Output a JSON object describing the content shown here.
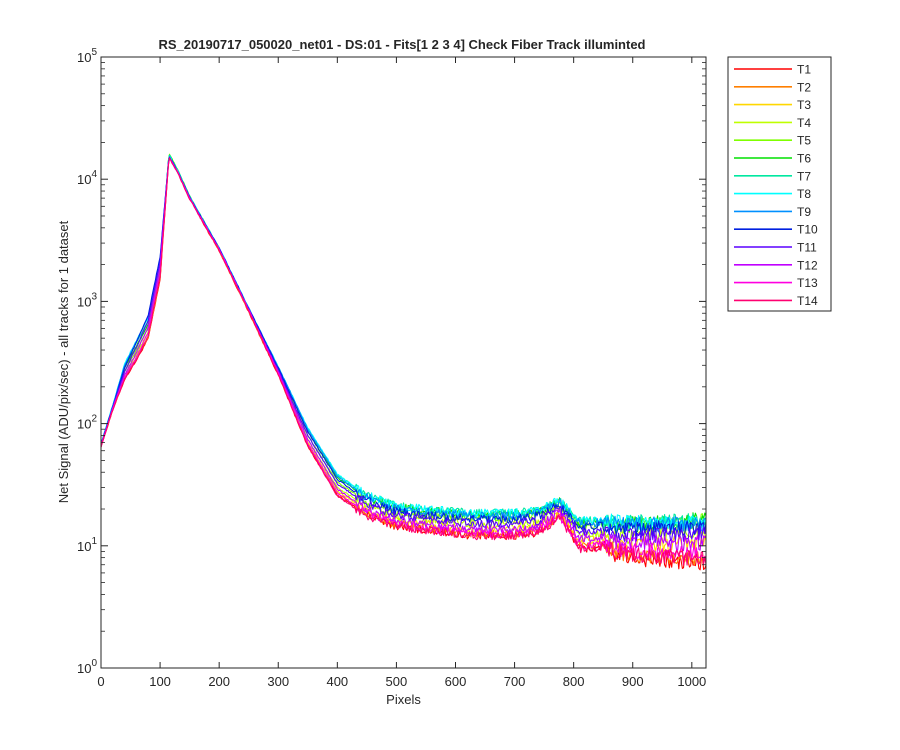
{
  "chart_data": {
    "type": "line",
    "title": "RS_20190717_050020_net01 - DS:01 - Fits[1  2  3  4]   Check Fiber     Track illuminted",
    "xlabel": "Pixels",
    "ylabel": "Net Signal (ADU/pix/sec) - all tracks for 1 dataset",
    "xlim": [
      0,
      1024
    ],
    "ylim": [
      1,
      100000
    ],
    "yscale": "log",
    "xticks": [
      "0",
      "100",
      "200",
      "300",
      "400",
      "500",
      "600",
      "700",
      "800",
      "900",
      "1000"
    ],
    "xtick_values": [
      0,
      100,
      200,
      300,
      400,
      500,
      600,
      700,
      800,
      900,
      1000
    ],
    "ytick_exponents": [
      "0",
      "1",
      "2",
      "3",
      "4",
      "5"
    ],
    "ytick_base": "10",
    "legend_position": "outside-right-top",
    "shared_profile": {
      "x": [
        0,
        20,
        40,
        60,
        80,
        100,
        115,
        130,
        150,
        175,
        200,
        250,
        300,
        350,
        400,
        450,
        500,
        550,
        600,
        650,
        700,
        740,
        760,
        775,
        790,
        810,
        830,
        850,
        870,
        900,
        950,
        1000,
        1024
      ]
    },
    "series": [
      {
        "name": "T1",
        "color": "#ff0000",
        "values": [
          65,
          130,
          230,
          330,
          500,
          1500,
          15500,
          11500,
          7000,
          4200,
          2600,
          820,
          250,
          65,
          26,
          18,
          14.5,
          13.5,
          12.5,
          12,
          12,
          13,
          15,
          17.5,
          14,
          9.5,
          9.5,
          10,
          8.5,
          8,
          7.5,
          7.2,
          7
        ]
      },
      {
        "name": "T2",
        "color": "#ff7f00",
        "values": [
          65,
          130,
          235,
          340,
          510,
          1550,
          15700,
          11600,
          7050,
          4250,
          2620,
          830,
          255,
          67,
          27,
          18.5,
          15,
          14,
          13,
          12.5,
          12.5,
          13.5,
          15.5,
          18,
          14.5,
          10,
          10,
          10.5,
          9,
          8.5,
          8.2,
          8,
          8
        ]
      },
      {
        "name": "T3",
        "color": "#ffd700",
        "values": [
          66,
          132,
          240,
          350,
          520,
          1600,
          15900,
          11700,
          7100,
          4300,
          2650,
          840,
          260,
          70,
          28,
          19.5,
          16,
          15,
          14,
          13.5,
          13.5,
          14.5,
          16.5,
          19,
          15.5,
          11,
          11,
          11.5,
          10,
          10,
          10.2,
          10.5,
          10.8
        ]
      },
      {
        "name": "T4",
        "color": "#bfff00",
        "values": [
          66,
          134,
          250,
          370,
          560,
          1700,
          16200,
          11800,
          7150,
          4350,
          2680,
          850,
          268,
          74,
          30,
          21,
          17.5,
          16.5,
          15.5,
          15,
          15,
          16,
          18,
          20.5,
          17,
          12.5,
          12.5,
          13,
          12,
          12,
          12.5,
          13,
          13.5
        ]
      },
      {
        "name": "T5",
        "color": "#7fff00",
        "values": [
          67,
          136,
          265,
          400,
          600,
          1800,
          16300,
          11900,
          7200,
          4400,
          2700,
          860,
          275,
          80,
          33,
          23,
          19,
          18,
          17.5,
          17,
          17,
          18,
          20,
          22.5,
          18.5,
          14.5,
          14.5,
          15,
          14,
          14.5,
          15,
          15.5,
          16
        ]
      },
      {
        "name": "T6",
        "color": "#00e000",
        "values": [
          67,
          138,
          285,
          430,
          650,
          1900,
          16200,
          11900,
          7250,
          4450,
          2720,
          870,
          282,
          86,
          36,
          25,
          20.5,
          19.5,
          18.5,
          18,
          18,
          19,
          21,
          23.5,
          19.5,
          15.5,
          15.5,
          15.5,
          15,
          15,
          15.5,
          16,
          16.5
        ]
      },
      {
        "name": "T7",
        "color": "#00e8a0",
        "values": [
          68,
          140,
          300,
          460,
          700,
          2000,
          16000,
          11800,
          7250,
          4450,
          2730,
          875,
          288,
          90,
          38,
          26,
          21,
          20,
          19,
          18.5,
          18.5,
          19.5,
          21.5,
          24,
          20,
          16,
          16,
          16,
          15.5,
          15.5,
          16,
          16,
          16.2
        ]
      },
      {
        "name": "T8",
        "color": "#00ffff",
        "values": [
          68,
          142,
          310,
          480,
          740,
          2100,
          15800,
          11700,
          7200,
          4450,
          2740,
          880,
          292,
          92,
          38.5,
          26,
          21,
          20,
          19,
          18.5,
          18.5,
          19.5,
          21.5,
          24,
          20,
          16,
          16,
          16,
          15.5,
          15.2,
          15.5,
          15.5,
          15.5
        ]
      },
      {
        "name": "T9",
        "color": "#0090ff",
        "values": [
          67,
          140,
          300,
          470,
          760,
          2200,
          15600,
          11600,
          7150,
          4400,
          2730,
          880,
          290,
          90,
          37,
          25,
          20,
          19,
          18,
          17.5,
          17.5,
          18.5,
          20.5,
          23,
          19,
          15.5,
          15.5,
          15.5,
          15,
          14.8,
          15,
          15,
          15
        ]
      },
      {
        "name": "T10",
        "color": "#0020e0",
        "values": [
          67,
          138,
          290,
          460,
          780,
          2300,
          15400,
          11500,
          7100,
          4380,
          2720,
          875,
          285,
          86,
          35,
          23.5,
          19,
          18,
          17,
          16.5,
          16.5,
          17.5,
          19.5,
          22,
          18,
          14.5,
          14.5,
          14.5,
          14,
          13.8,
          14,
          14,
          14
        ]
      },
      {
        "name": "T11",
        "color": "#5a00ff",
        "values": [
          66,
          136,
          270,
          420,
          700,
          2100,
          15300,
          11400,
          7050,
          4330,
          2700,
          865,
          275,
          80,
          32,
          22,
          17.5,
          16.5,
          15.5,
          15,
          15,
          16,
          18,
          20.5,
          16.5,
          13,
          13,
          13,
          12.5,
          12.2,
          12.3,
          12.5,
          12.5
        ]
      },
      {
        "name": "T12",
        "color": "#c000ff",
        "values": [
          66,
          134,
          250,
          380,
          620,
          1900,
          15200,
          11350,
          7000,
          4300,
          2680,
          855,
          266,
          74,
          29,
          20,
          16,
          15,
          14,
          13.5,
          13.5,
          14.5,
          16.5,
          19,
          15,
          11.5,
          11.5,
          11.5,
          11,
          10.5,
          10.5,
          10.5,
          10.5
        ]
      },
      {
        "name": "T13",
        "color": "#ff00e0",
        "values": [
          65,
          132,
          240,
          350,
          560,
          1700,
          15100,
          11300,
          6950,
          4270,
          2650,
          845,
          258,
          69,
          27,
          18.5,
          15,
          14,
          13,
          12.5,
          12.5,
          13.5,
          15.5,
          18,
          14,
          10,
          10,
          10.5,
          9.5,
          9,
          9,
          9,
          9
        ]
      },
      {
        "name": "T14",
        "color": "#ff0070",
        "values": [
          65,
          130,
          232,
          335,
          520,
          1600,
          15000,
          11200,
          6900,
          4230,
          2620,
          835,
          252,
          66,
          25.5,
          17.5,
          14.5,
          13.5,
          12.5,
          12,
          12,
          13,
          15,
          17.5,
          13.5,
          9.5,
          9.5,
          10,
          9,
          8.5,
          8.2,
          8,
          8
        ]
      }
    ]
  }
}
